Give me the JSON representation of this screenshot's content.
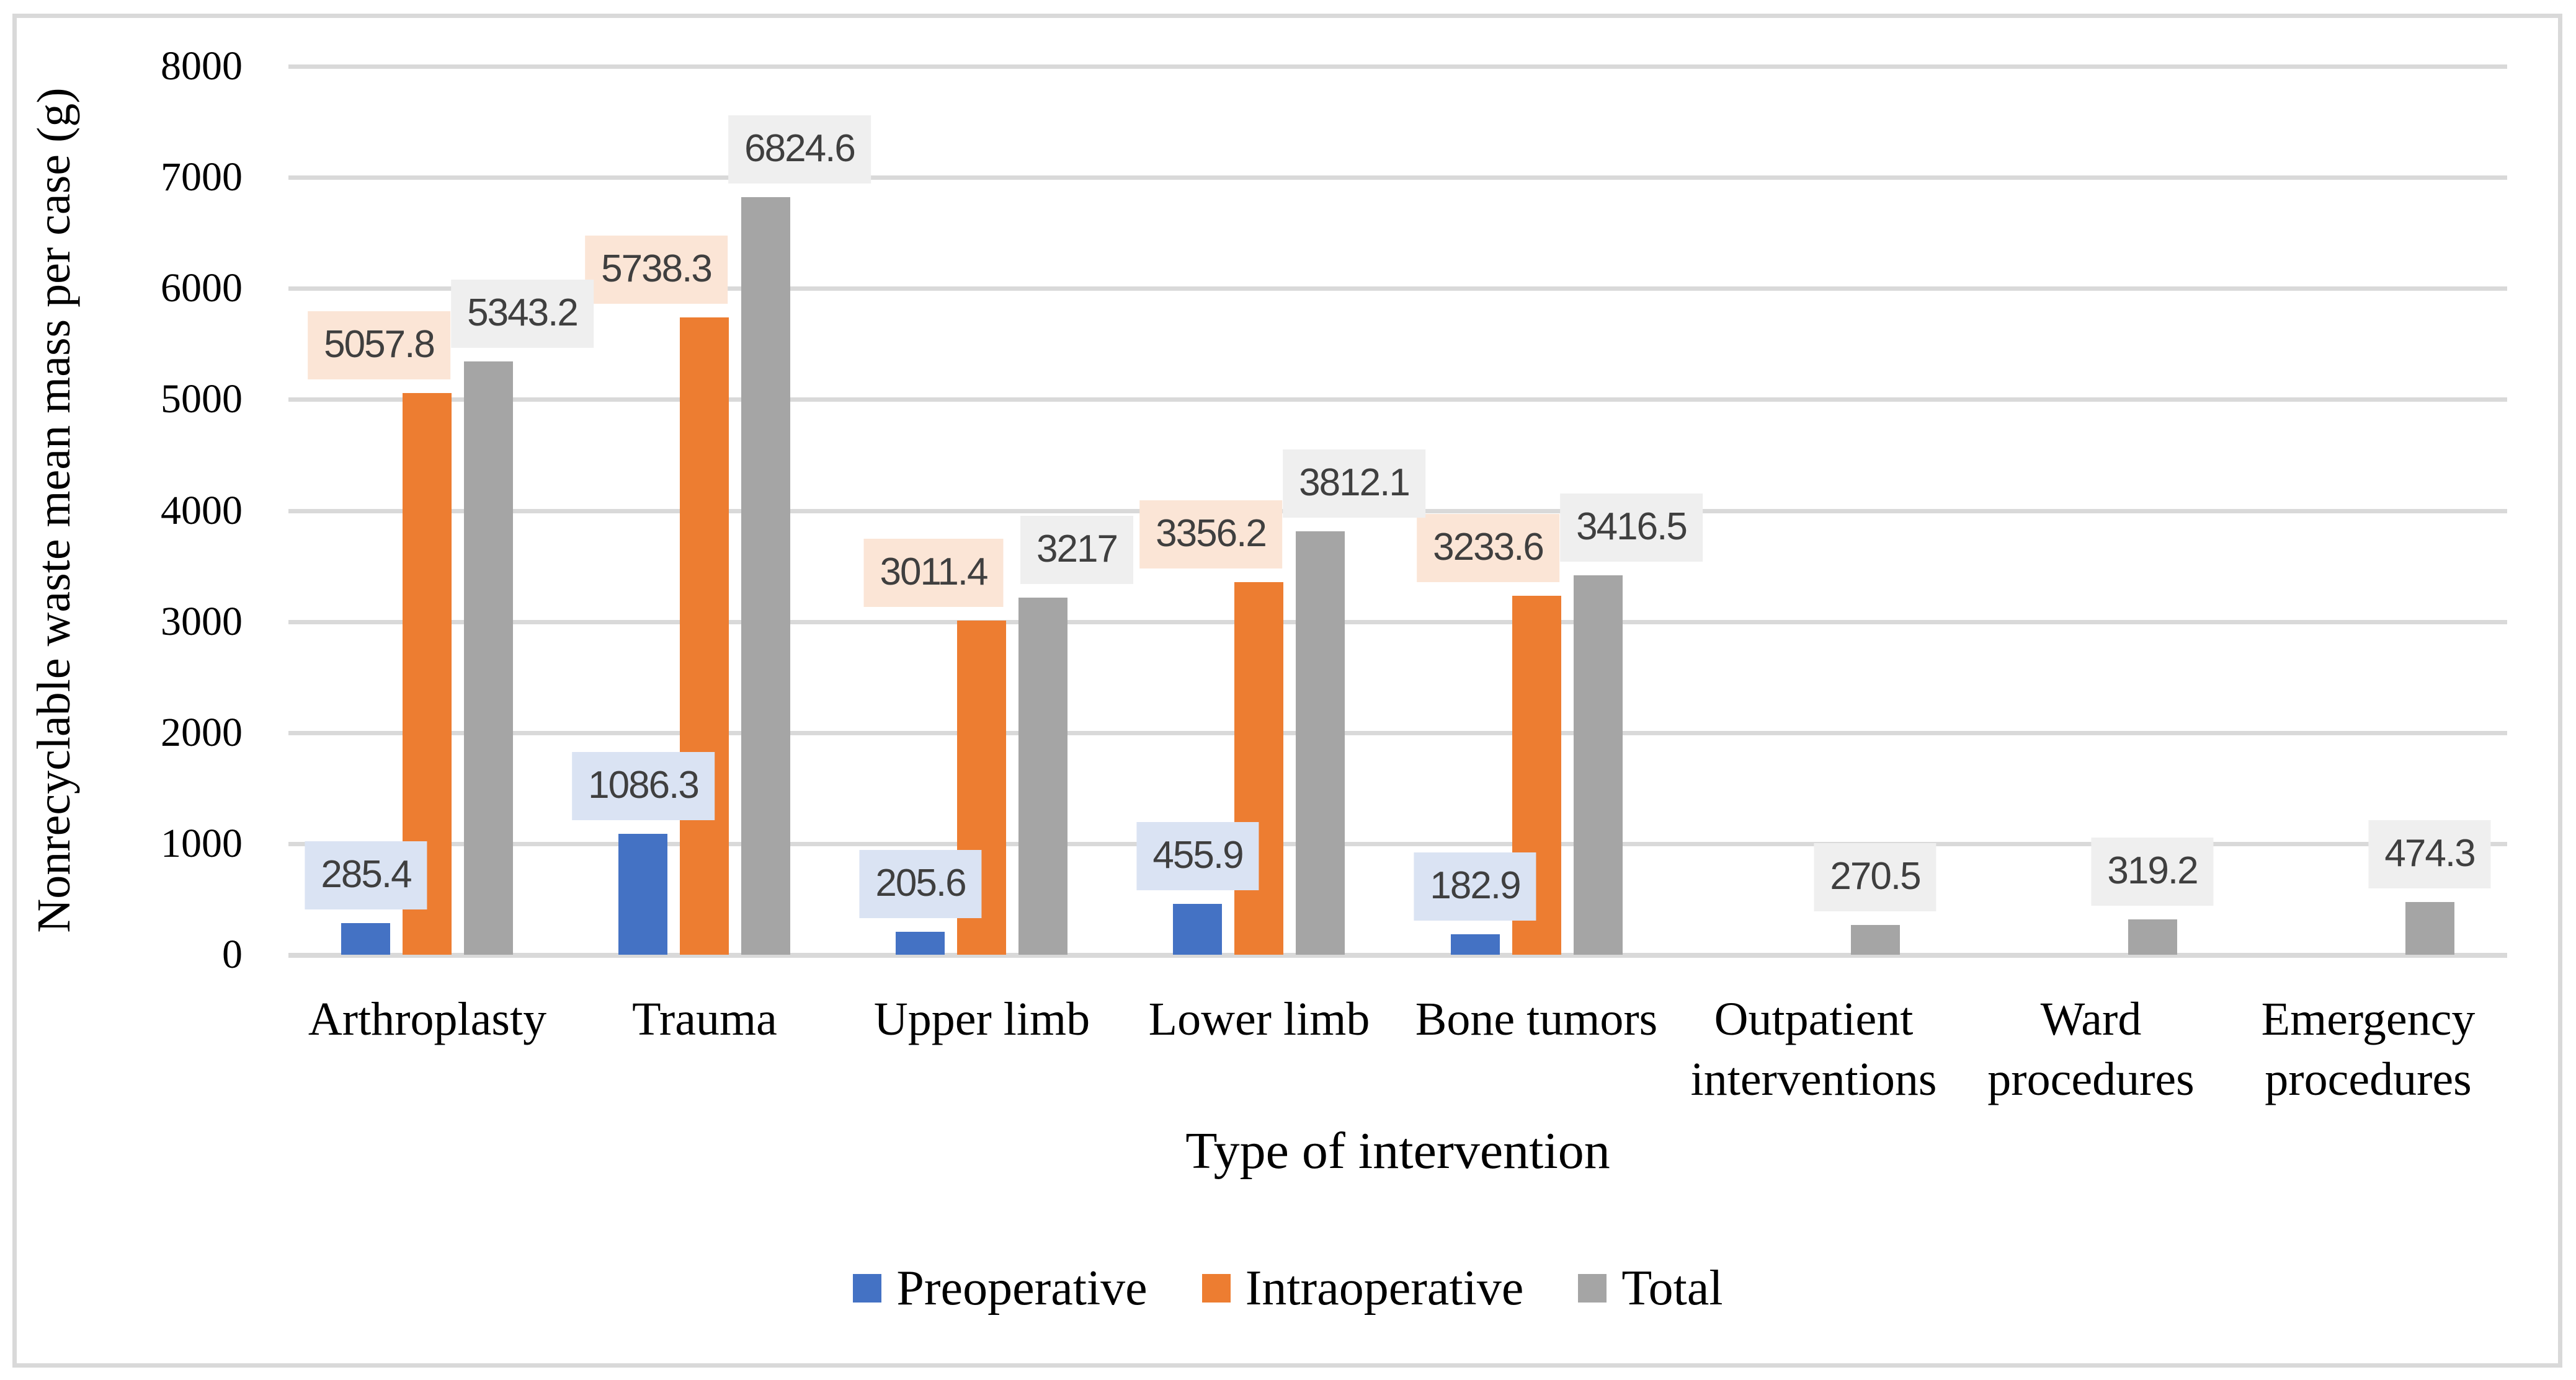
{
  "chart_data": {
    "type": "bar",
    "title": "",
    "xlabel": "Type of intervention",
    "ylabel": "Nonrecyclable waste mean mass per case (g)",
    "ylim": [
      0,
      8000
    ],
    "ytick_step": 1000,
    "yticks": [
      0,
      1000,
      2000,
      3000,
      4000,
      5000,
      6000,
      7000,
      8000
    ],
    "grid": true,
    "legend_position": "bottom",
    "categories": [
      "Arthroplasty",
      "Trauma",
      "Upper limb",
      "Lower limb",
      "Bone tumors",
      "Outpatient interventions",
      "Ward procedures",
      "Emergency procedures"
    ],
    "series": [
      {
        "name": "Preoperative",
        "color": "#4472C4",
        "label_bg": "#DAE3F3",
        "values": [
          285.4,
          1086.3,
          205.6,
          455.9,
          182.9,
          null,
          null,
          null
        ]
      },
      {
        "name": "Intraoperative",
        "color": "#ED7D31",
        "label_bg": "#FBE5D6",
        "values": [
          5057.8,
          5738.3,
          3011.4,
          3356.2,
          3233.6,
          null,
          null,
          null
        ]
      },
      {
        "name": "Total",
        "color": "#A5A5A5",
        "label_bg": "#EFEFEF",
        "values": [
          5343.2,
          6824.6,
          3217,
          3812.1,
          3416.5,
          270.5,
          319.2,
          474.3
        ]
      }
    ],
    "data_label_text_color": "#3F3F3F",
    "grid_color": "#D9D9D9",
    "frame_border_color": "#D9D9D9"
  }
}
